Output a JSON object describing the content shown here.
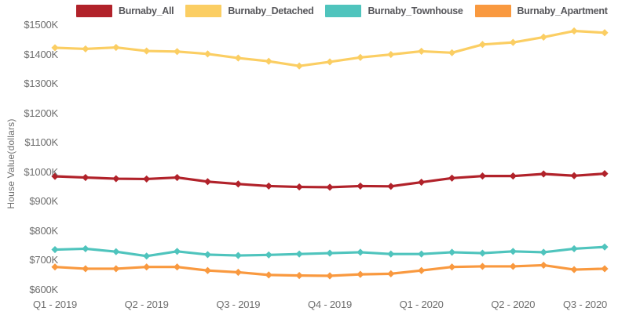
{
  "chart_data": {
    "type": "line",
    "title": "",
    "ylabel": "House Value(dollars)",
    "ylim": [
      600,
      1500
    ],
    "unit": "thousand dollars (K)",
    "grid": false,
    "marker": "diamond",
    "legend_position": "top",
    "n_points": 19,
    "y_tick_values": [
      1500,
      1400,
      1300,
      1200,
      1100,
      1000,
      900,
      800,
      700,
      600
    ],
    "y_tick_labels": [
      "$1500K",
      "$1400K",
      "$1300K",
      "$1200K",
      "$1100K",
      "$1000K",
      "$900K",
      "$800K",
      "$700K",
      "$600K"
    ],
    "x_tick_indices": [
      0,
      3,
      6,
      9,
      12,
      15,
      18
    ],
    "x_tick_labels": [
      "Q1 - 2019",
      "Q2 - 2019",
      "Q3 - 2019",
      "Q4 - 2019",
      "Q1 - 2020",
      "Q2 - 2020",
      "Q3 - 2020"
    ],
    "series": [
      {
        "name": "Burnaby_All",
        "color": "#b1222a",
        "values": [
          986,
          982,
          978,
          977,
          982,
          968,
          960,
          953,
          950,
          949,
          953,
          952,
          966,
          980,
          987,
          987,
          994,
          988,
          995
        ]
      },
      {
        "name": "Burnaby_Detached",
        "color": "#fbce63",
        "values": [
          1423,
          1419,
          1424,
          1412,
          1410,
          1402,
          1388,
          1377,
          1361,
          1375,
          1390,
          1400,
          1411,
          1406,
          1434,
          1441,
          1459,
          1480,
          1474
        ]
      },
      {
        "name": "Burnaby_Townhouse",
        "color": "#4fc4bd",
        "values": [
          737,
          740,
          730,
          715,
          731,
          720,
          717,
          719,
          722,
          725,
          728,
          722,
          722,
          728,
          725,
          731,
          728,
          740,
          746
        ]
      },
      {
        "name": "Burnaby_Apartment",
        "color": "#f9993f",
        "values": [
          678,
          672,
          672,
          678,
          678,
          666,
          660,
          651,
          649,
          648,
          653,
          655,
          666,
          678,
          680,
          680,
          684,
          669,
          672
        ]
      }
    ]
  }
}
